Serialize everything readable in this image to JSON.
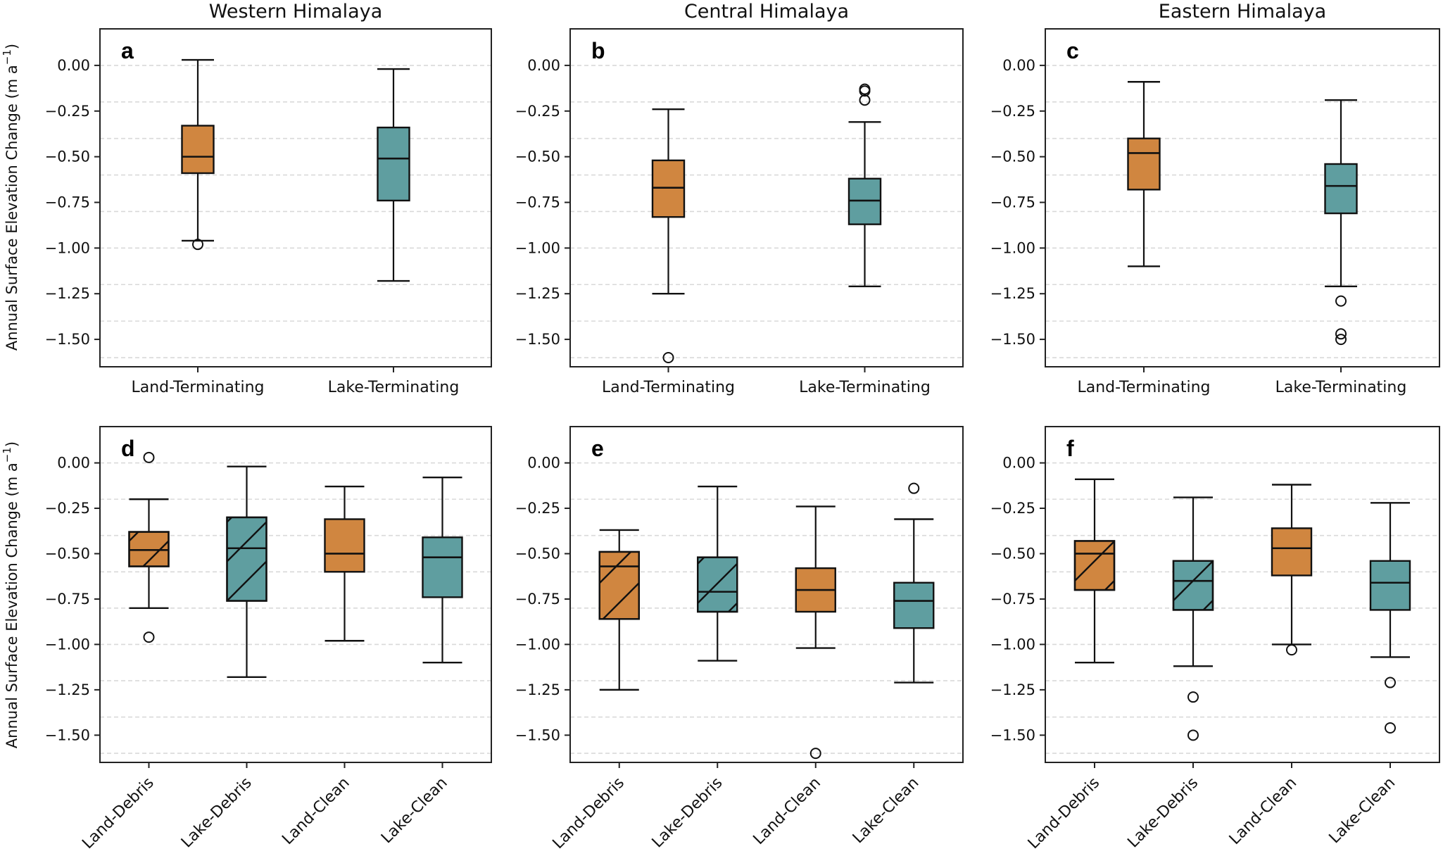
{
  "figure": {
    "ylabel": "Annual Surface Elevation Change (m a",
    "ylabel_sup": "−1",
    "ylabel_close": ")",
    "column_titles": [
      "Western Himalaya",
      "Central Himalaya",
      "Eastern Himalaya"
    ],
    "colors": {
      "land": "#D08640",
      "lake": "#5F9EA0",
      "edge": "#111111",
      "grid": "#d9d9d9"
    }
  },
  "chart_data": [
    {
      "type": "box",
      "panel": "a",
      "title": "Western Himalaya",
      "ylabel": "Annual Surface Elevation Change (m a−1)",
      "ylim": [
        -1.65,
        0.2
      ],
      "yticks": [
        0.0,
        -0.25,
        -0.5,
        -0.75,
        -1.0,
        -1.25,
        -1.5
      ],
      "ytick_labels": [
        "0.00",
        "−0.25",
        "−0.50",
        "−0.75",
        "−1.00",
        "−1.25",
        "−1.50"
      ],
      "grid": "horizontal dashed every 0.2",
      "categories": [
        "Land-Terminating",
        "Lake-Terminating"
      ],
      "rotated_labels": false,
      "boxes": [
        {
          "name": "Land-Terminating",
          "group": "land",
          "hatch": false,
          "whisker_high": 0.03,
          "q3": -0.33,
          "median": -0.5,
          "q1": -0.59,
          "whisker_low": -0.96,
          "outliers": [
            -0.98
          ]
        },
        {
          "name": "Lake-Terminating",
          "group": "lake",
          "hatch": false,
          "whisker_high": -0.02,
          "q3": -0.34,
          "median": -0.51,
          "q1": -0.74,
          "whisker_low": -1.18,
          "outliers": []
        }
      ]
    },
    {
      "type": "box",
      "panel": "b",
      "title": "Central Himalaya",
      "ylim": [
        -1.65,
        0.2
      ],
      "yticks": [
        0.0,
        -0.25,
        -0.5,
        -0.75,
        -1.0,
        -1.25,
        -1.5
      ],
      "ytick_labels": [
        "0.00",
        "−0.25",
        "−0.50",
        "−0.75",
        "−1.00",
        "−1.25",
        "−1.50"
      ],
      "grid": "horizontal dashed every 0.2",
      "categories": [
        "Land-Terminating",
        "Lake-Terminating"
      ],
      "rotated_labels": false,
      "boxes": [
        {
          "name": "Land-Terminating",
          "group": "land",
          "hatch": false,
          "whisker_high": -0.24,
          "q3": -0.52,
          "median": -0.67,
          "q1": -0.83,
          "whisker_low": -1.25,
          "outliers": [
            -1.6
          ]
        },
        {
          "name": "Lake-Terminating",
          "group": "lake",
          "hatch": false,
          "whisker_high": -0.31,
          "q3": -0.62,
          "median": -0.74,
          "q1": -0.87,
          "whisker_low": -1.21,
          "outliers": [
            -0.13,
            -0.14,
            -0.19
          ]
        }
      ]
    },
    {
      "type": "box",
      "panel": "c",
      "title": "Eastern Himalaya",
      "ylim": [
        -1.65,
        0.2
      ],
      "yticks": [
        0.0,
        -0.25,
        -0.5,
        -0.75,
        -1.0,
        -1.25,
        -1.5
      ],
      "ytick_labels": [
        "0.00",
        "−0.25",
        "−0.50",
        "−0.75",
        "−1.00",
        "−1.25",
        "−1.50"
      ],
      "grid": "horizontal dashed every 0.2",
      "categories": [
        "Land-Terminating",
        "Lake-Terminating"
      ],
      "rotated_labels": false,
      "boxes": [
        {
          "name": "Land-Terminating",
          "group": "land",
          "hatch": false,
          "whisker_high": -0.09,
          "q3": -0.4,
          "median": -0.48,
          "q1": -0.68,
          "whisker_low": -1.1,
          "outliers": []
        },
        {
          "name": "Lake-Terminating",
          "group": "lake",
          "hatch": false,
          "whisker_high": -0.19,
          "q3": -0.54,
          "median": -0.66,
          "q1": -0.81,
          "whisker_low": -1.21,
          "outliers": [
            -1.29,
            -1.47,
            -1.5
          ]
        }
      ]
    },
    {
      "type": "box",
      "panel": "d",
      "title": "",
      "ylabel": "Annual Surface Elevation Change (m a−1)",
      "ylim": [
        -1.65,
        0.2
      ],
      "yticks": [
        0.0,
        -0.25,
        -0.5,
        -0.75,
        -1.0,
        -1.25,
        -1.5
      ],
      "ytick_labels": [
        "0.00",
        "−0.25",
        "−0.50",
        "−0.75",
        "−1.00",
        "−1.25",
        "−1.50"
      ],
      "grid": "horizontal dashed every 0.2",
      "categories": [
        "Land-Debris",
        "Lake-Debris",
        "Land-Clean",
        "Lake-Clean"
      ],
      "rotated_labels": true,
      "boxes": [
        {
          "name": "Land-Debris",
          "group": "land",
          "hatch": true,
          "whisker_high": -0.2,
          "q3": -0.38,
          "median": -0.48,
          "q1": -0.57,
          "whisker_low": -0.8,
          "outliers": [
            0.03,
            -0.96
          ]
        },
        {
          "name": "Lake-Debris",
          "group": "lake",
          "hatch": true,
          "whisker_high": -0.02,
          "q3": -0.3,
          "median": -0.47,
          "q1": -0.76,
          "whisker_low": -1.18,
          "outliers": []
        },
        {
          "name": "Land-Clean",
          "group": "land",
          "hatch": false,
          "whisker_high": -0.13,
          "q3": -0.31,
          "median": -0.5,
          "q1": -0.6,
          "whisker_low": -0.98,
          "outliers": []
        },
        {
          "name": "Lake-Clean",
          "group": "lake",
          "hatch": false,
          "whisker_high": -0.08,
          "q3": -0.41,
          "median": -0.52,
          "q1": -0.74,
          "whisker_low": -1.1,
          "outliers": []
        }
      ]
    },
    {
      "type": "box",
      "panel": "e",
      "title": "",
      "ylim": [
        -1.65,
        0.2
      ],
      "yticks": [
        0.0,
        -0.25,
        -0.5,
        -0.75,
        -1.0,
        -1.25,
        -1.5
      ],
      "ytick_labels": [
        "0.00",
        "−0.25",
        "−0.50",
        "−0.75",
        "−1.00",
        "−1.25",
        "−1.50"
      ],
      "grid": "horizontal dashed every 0.2",
      "categories": [
        "Land-Debris",
        "Lake-Debris",
        "Land-Clean",
        "Lake-Clean"
      ],
      "rotated_labels": true,
      "boxes": [
        {
          "name": "Land-Debris",
          "group": "land",
          "hatch": true,
          "whisker_high": -0.37,
          "q3": -0.49,
          "median": -0.57,
          "q1": -0.86,
          "whisker_low": -1.25,
          "outliers": []
        },
        {
          "name": "Lake-Debris",
          "group": "lake",
          "hatch": true,
          "whisker_high": -0.13,
          "q3": -0.52,
          "median": -0.71,
          "q1": -0.82,
          "whisker_low": -1.09,
          "outliers": []
        },
        {
          "name": "Land-Clean",
          "group": "land",
          "hatch": false,
          "whisker_high": -0.24,
          "q3": -0.58,
          "median": -0.7,
          "q1": -0.82,
          "whisker_low": -1.02,
          "outliers": [
            -1.6
          ]
        },
        {
          "name": "Lake-Clean",
          "group": "lake",
          "hatch": false,
          "whisker_high": -0.31,
          "q3": -0.66,
          "median": -0.76,
          "q1": -0.91,
          "whisker_low": -1.21,
          "outliers": [
            -0.14
          ]
        }
      ]
    },
    {
      "type": "box",
      "panel": "f",
      "title": "",
      "ylim": [
        -1.65,
        0.2
      ],
      "yticks": [
        0.0,
        -0.25,
        -0.5,
        -0.75,
        -1.0,
        -1.25,
        -1.5
      ],
      "ytick_labels": [
        "0.00",
        "−0.25",
        "−0.50",
        "−0.75",
        "−1.00",
        "−1.25",
        "−1.50"
      ],
      "grid": "horizontal dashed every 0.2",
      "categories": [
        "Land-Debris",
        "Lake-Debris",
        "Land-Clean",
        "Lake-Clean"
      ],
      "rotated_labels": true,
      "boxes": [
        {
          "name": "Land-Debris",
          "group": "land",
          "hatch": true,
          "whisker_high": -0.09,
          "q3": -0.43,
          "median": -0.5,
          "q1": -0.7,
          "whisker_low": -1.1,
          "outliers": []
        },
        {
          "name": "Lake-Debris",
          "group": "lake",
          "hatch": true,
          "whisker_high": -0.19,
          "q3": -0.54,
          "median": -0.65,
          "q1": -0.81,
          "whisker_low": -1.12,
          "outliers": [
            -1.29,
            -1.5
          ]
        },
        {
          "name": "Land-Clean",
          "group": "land",
          "hatch": false,
          "whisker_high": -0.12,
          "q3": -0.36,
          "median": -0.47,
          "q1": -0.62,
          "whisker_low": -1.0,
          "outliers": [
            -1.03
          ]
        },
        {
          "name": "Lake-Clean",
          "group": "lake",
          "hatch": false,
          "whisker_high": -0.22,
          "q3": -0.54,
          "median": -0.66,
          "q1": -0.81,
          "whisker_low": -1.07,
          "outliers": [
            -1.21,
            -1.46
          ]
        }
      ]
    }
  ]
}
